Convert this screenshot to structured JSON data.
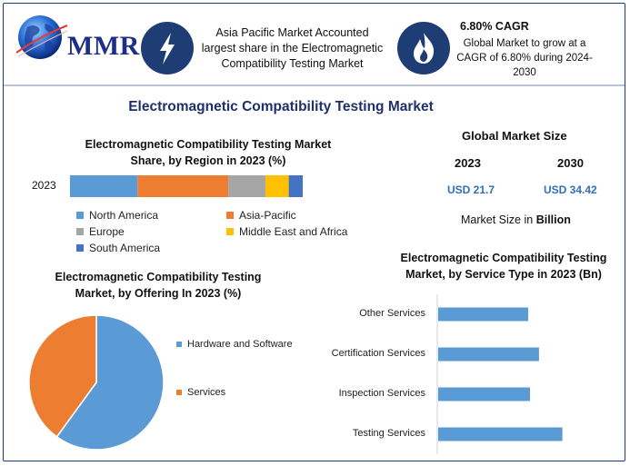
{
  "brand": {
    "name": "MMR"
  },
  "header": {
    "region_text": "Asia Pacific Market Accounted largest share in the Electromagnetic Compatibility Testing Market",
    "region_lines": [
      "Asia Pacific Market Accounted",
      "largest share in the Electromagnetic",
      "Compatibility Testing Market"
    ],
    "cagr_title": "6.80% CAGR",
    "cagr_lines": [
      "Global Market to grow at a",
      "CAGR of 6.80% during 2024-",
      "2030"
    ],
    "icons": [
      "lightning-icon",
      "flame-icon"
    ]
  },
  "main_title": "Electromagnetic Compatibility Testing Market",
  "market_size": {
    "title": "Global Market Size",
    "years": [
      "2023",
      "2030"
    ],
    "values": [
      "USD 21.7",
      "USD 34.42"
    ],
    "unit_prefix": "Market Size in",
    "unit_bold": "Billion"
  },
  "colors": {
    "north_america": "#5b9bd5",
    "asia_pacific": "#ed7d31",
    "europe": "#a5a5a5",
    "middle_east_africa": "#ffc000",
    "south_america": "#4472c4",
    "accent": "#1e3d75",
    "title": "#1e2f6b"
  },
  "chart_data": [
    {
      "type": "bar",
      "orientation": "horizontal-stacked",
      "title_lines": [
        "Electromagnetic Compatibility Testing Market",
        "Share, by Region in 2023 (%)"
      ],
      "categories": [
        "2023"
      ],
      "series": [
        {
          "name": "North America",
          "values": [
            29
          ]
        },
        {
          "name": "Asia-Pacific",
          "values": [
            39
          ]
        },
        {
          "name": "Europe",
          "values": [
            16
          ]
        },
        {
          "name": "Middle East and Africa",
          "values": [
            10
          ]
        },
        {
          "name": "South America",
          "values": [
            6
          ]
        }
      ],
      "legend_position": "bottom"
    },
    {
      "type": "pie",
      "title_lines": [
        "Electromagnetic Compatibility Testing",
        "Market, by Offering In 2023 (%)"
      ],
      "categories": [
        "Hardware and Software",
        "Services"
      ],
      "values": [
        60,
        40
      ],
      "legend_position": "right"
    },
    {
      "type": "bar",
      "orientation": "horizontal",
      "title_lines": [
        "Electromagnetic Compatibility Testing",
        "Market, by Service Type in 2023 (Bn)"
      ],
      "categories": [
        "Other Services",
        "Certification Services",
        "Inspection Services",
        "Testing Services"
      ],
      "values": [
        5.0,
        5.6,
        5.1,
        6.9
      ],
      "xlim": [
        0,
        10
      ]
    }
  ]
}
